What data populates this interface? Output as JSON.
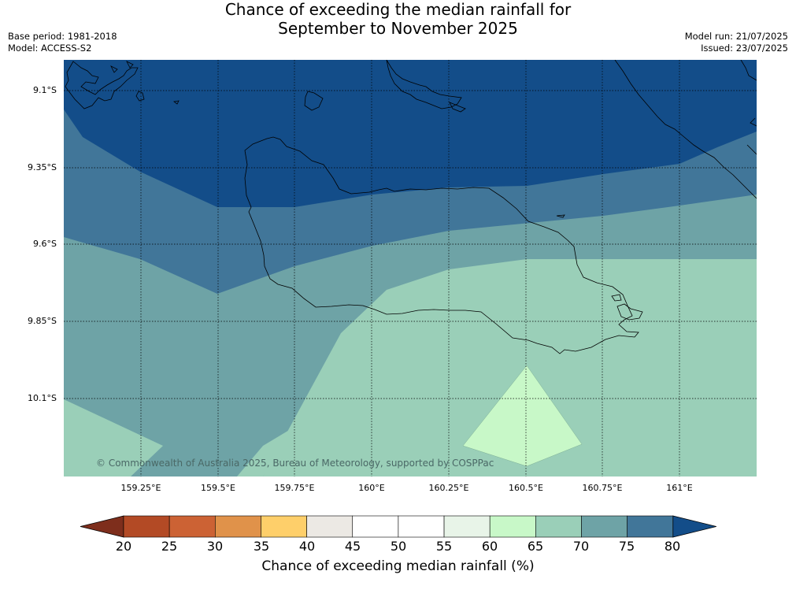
{
  "title": {
    "line1": "Chance of exceeding the median rainfall for",
    "line2": "September to November 2025"
  },
  "meta": {
    "base_period": "Base period: 1981-2018",
    "model": "Model: ACCESS-S2",
    "model_run": "Model run: 21/07/2025",
    "issued": "Issued: 23/07/2025"
  },
  "map": {
    "lat_labels": [
      "9.1°S",
      "9.35°S",
      "9.6°S",
      "9.85°S",
      "10.1°S"
    ],
    "lon_labels": [
      "159.25°E",
      "159.5°E",
      "159.75°E",
      "160°E",
      "160.25°E",
      "160.5°E",
      "160.75°E",
      "161°E"
    ],
    "copyright": "© Commonwealth of Australia 2025, Bureau of Meteorology, supported by COSPPac"
  },
  "colorbar": {
    "title": "Chance of exceeding median rainfall (%)",
    "ticks": [
      "20",
      "25",
      "30",
      "35",
      "40",
      "45",
      "50",
      "55",
      "60",
      "65",
      "70",
      "75",
      "80"
    ],
    "colors": [
      "#7e2e1c",
      "#b34a25",
      "#cc6234",
      "#e0924a",
      "#fecf6a",
      "#ece9e4",
      "#ffffff",
      "#ffffff",
      "#e8f4e8",
      "#c8f8c8",
      "#9acfb8",
      "#6ea3a6",
      "#417699",
      "#134d89"
    ]
  }
}
